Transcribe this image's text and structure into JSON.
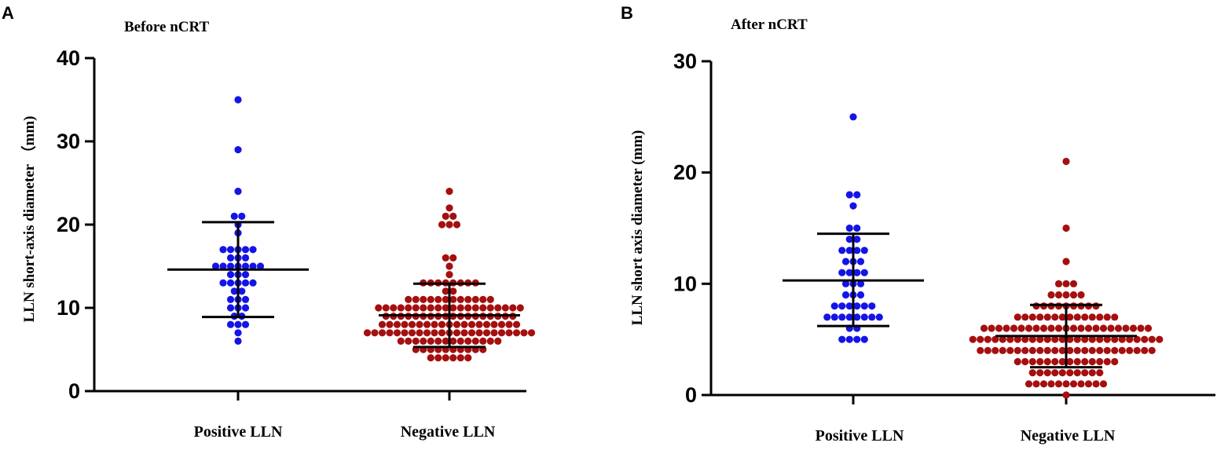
{
  "panels": [
    {
      "label": "A"
    },
    {
      "label": "B"
    }
  ],
  "chart_data": [
    {
      "type": "scatter",
      "title": "Before  nCRT",
      "ylabel": "LLN short-axis diameter  （mm)",
      "ylim": [
        0,
        40
      ],
      "yticks": [
        0,
        10,
        20,
        30,
        40
      ],
      "categories": [
        "Positive  LLN",
        "Negative  LLN"
      ],
      "colors": [
        "#1414e6",
        "#a50f0f"
      ],
      "groups": [
        {
          "name": "Positive  LLN",
          "values": [
            35,
            29,
            24,
            21,
            21,
            20,
            19,
            17,
            17,
            17,
            17,
            17,
            16,
            16,
            16,
            15,
            15,
            15,
            15,
            15,
            15,
            15,
            14,
            14,
            14,
            13,
            13,
            13,
            13,
            13,
            12,
            12,
            11,
            11,
            11,
            10,
            10,
            10,
            9,
            9,
            8,
            8,
            8,
            7,
            6
          ],
          "mean": 14.6,
          "sd_upper": 20.3,
          "sd_lower": 8.9
        },
        {
          "name": "Negative  LLN",
          "values": [
            24,
            22,
            21,
            21,
            20,
            20,
            20,
            16,
            16,
            15,
            14,
            13,
            13,
            13,
            13,
            13,
            13,
            13,
            13,
            12,
            12,
            11,
            11,
            11,
            11,
            11,
            11,
            11,
            11,
            11,
            11,
            11,
            11,
            10,
            10,
            10,
            10,
            10,
            10,
            10,
            10,
            10,
            10,
            10,
            10,
            10,
            10,
            10,
            10,
            10,
            10,
            10,
            10,
            9,
            9,
            9,
            9,
            9,
            9,
            9,
            9,
            9,
            9,
            9,
            9,
            9,
            9,
            9,
            9,
            9,
            9,
            8,
            8,
            8,
            8,
            8,
            8,
            8,
            8,
            8,
            8,
            8,
            8,
            8,
            8,
            8,
            8,
            8,
            8,
            8,
            7,
            7,
            7,
            7,
            7,
            7,
            7,
            7,
            7,
            7,
            7,
            7,
            7,
            7,
            7,
            7,
            7,
            7,
            7,
            7,
            7,
            7,
            7,
            6,
            6,
            6,
            6,
            6,
            6,
            6,
            6,
            6,
            6,
            6,
            6,
            6,
            6,
            5,
            5,
            5,
            5,
            5,
            5,
            5,
            5,
            5,
            5,
            4,
            4,
            4,
            4,
            4,
            4
          ],
          "mean": 9.1,
          "sd_upper": 12.9,
          "sd_lower": 5.3
        }
      ]
    },
    {
      "type": "scatter",
      "title": "After nCRT",
      "ylabel": "LLN short axis diameter (mm)",
      "ylim": [
        0,
        30
      ],
      "yticks": [
        0,
        10,
        20,
        30
      ],
      "categories": [
        "Positive  LLN",
        "Negative  LLN"
      ],
      "colors": [
        "#1414e6",
        "#a50f0f"
      ],
      "groups": [
        {
          "name": "Positive  LLN",
          "values": [
            25,
            18,
            18,
            17,
            15,
            15,
            14,
            14,
            13,
            13,
            13,
            13,
            12,
            12,
            12,
            11,
            11,
            11,
            11,
            10,
            10,
            10,
            9,
            9,
            9,
            8,
            8,
            8,
            8,
            8,
            8,
            7,
            7,
            7,
            7,
            7,
            7,
            7,
            7,
            6,
            6,
            5,
            5,
            5,
            5
          ],
          "mean": 10.3,
          "sd_upper": 14.5,
          "sd_lower": 6.2
        },
        {
          "name": "Negative  LLN",
          "values": [
            21,
            15,
            12,
            10,
            10,
            10,
            9,
            9,
            9,
            9,
            9,
            8,
            8,
            8,
            8,
            8,
            8,
            8,
            8,
            8,
            7,
            7,
            7,
            7,
            7,
            7,
            7,
            7,
            7,
            7,
            7,
            7,
            7,
            7,
            6,
            6,
            6,
            6,
            6,
            6,
            6,
            6,
            6,
            6,
            6,
            6,
            6,
            6,
            6,
            6,
            6,
            6,
            6,
            6,
            6,
            6,
            6,
            5,
            5,
            5,
            5,
            5,
            5,
            5,
            5,
            5,
            5,
            5,
            5,
            5,
            5,
            5,
            5,
            5,
            5,
            5,
            5,
            5,
            5,
            5,
            5,
            5,
            5,
            4,
            4,
            4,
            4,
            4,
            4,
            4,
            4,
            4,
            4,
            4,
            4,
            4,
            4,
            4,
            4,
            4,
            4,
            4,
            4,
            4,
            4,
            4,
            4,
            3,
            3,
            3,
            3,
            3,
            3,
            3,
            3,
            3,
            3,
            3,
            3,
            3,
            3,
            2,
            2,
            2,
            2,
            2,
            2,
            2,
            2,
            2,
            2,
            1,
            1,
            1,
            1,
            1,
            1,
            1,
            1,
            1,
            1,
            1,
            0
          ],
          "mean": 5.3,
          "sd_upper": 8.1,
          "sd_lower": 2.5
        }
      ]
    }
  ]
}
